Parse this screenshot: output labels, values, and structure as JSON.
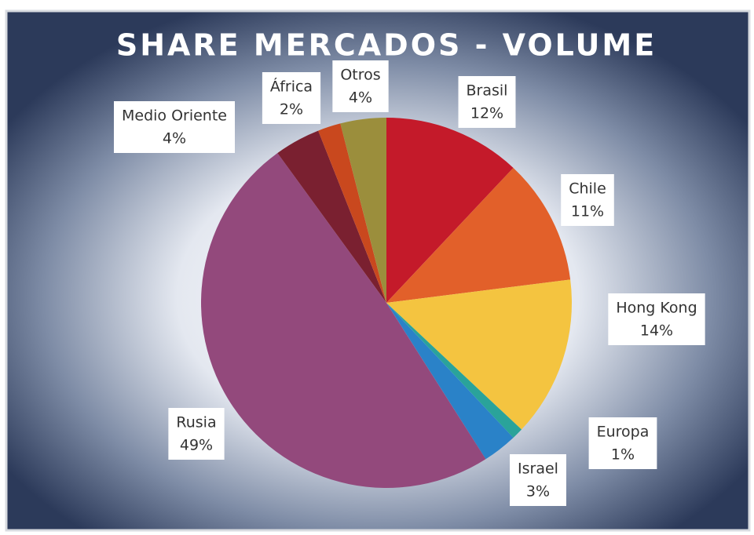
{
  "chart_data": {
    "type": "pie",
    "title": "SHARE MERCADOS - VOLUME",
    "categories": [
      "Brasil",
      "Chile",
      "Hong Kong",
      "Europa",
      "Israel",
      "Rusia",
      "Medio Oriente",
      "África",
      "Otros"
    ],
    "values": [
      12,
      11,
      14,
      1,
      3,
      49,
      4,
      2,
      4
    ],
    "value_labels": [
      "12%",
      "11%",
      "14%",
      "1%",
      "3%",
      "49%",
      "4%",
      "2%",
      "4%"
    ],
    "colors": [
      "#c41a2a",
      "#e2602a",
      "#f4c440",
      "#2aa39a",
      "#2a82c8",
      "#93497c",
      "#7a2030",
      "#c9481e",
      "#9b8e3c"
    ]
  }
}
